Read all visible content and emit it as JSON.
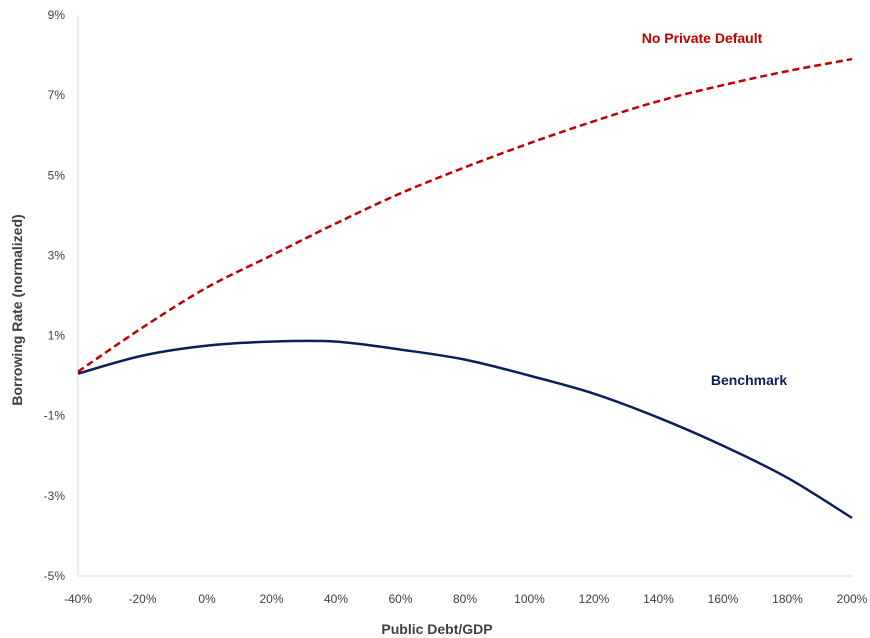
{
  "chart_data": {
    "type": "line",
    "title": "",
    "xlabel": "Public Debt/GDP",
    "ylabel": "Borrowing Rate (normalized)",
    "x_ticks": [
      "-40%",
      "-20%",
      "0%",
      "20%",
      "40%",
      "60%",
      "80%",
      "100%",
      "120%",
      "140%",
      "160%",
      "180%",
      "200%"
    ],
    "y_ticks": [
      "-5%",
      "-3%",
      "-1%",
      "1%",
      "3%",
      "5%",
      "7%",
      "9%"
    ],
    "xlim": [
      -40,
      200
    ],
    "ylim": [
      -5,
      9
    ],
    "grid": false,
    "x": [
      -40,
      -20,
      0,
      20,
      40,
      60,
      80,
      100,
      120,
      140,
      160,
      180,
      200
    ],
    "series": [
      {
        "name": "No Private Default",
        "color": "#c00000",
        "style": "dashed",
        "values": [
          0.1,
          1.2,
          2.2,
          3.0,
          3.8,
          4.55,
          5.2,
          5.8,
          6.35,
          6.85,
          7.25,
          7.6,
          7.9
        ]
      },
      {
        "name": "Benchmark",
        "color": "#0b1f5c",
        "style": "solid",
        "values": [
          0.05,
          0.5,
          0.75,
          0.85,
          0.85,
          0.65,
          0.4,
          0.0,
          -0.45,
          -1.05,
          -1.75,
          -2.55,
          -3.55
        ]
      }
    ]
  }
}
